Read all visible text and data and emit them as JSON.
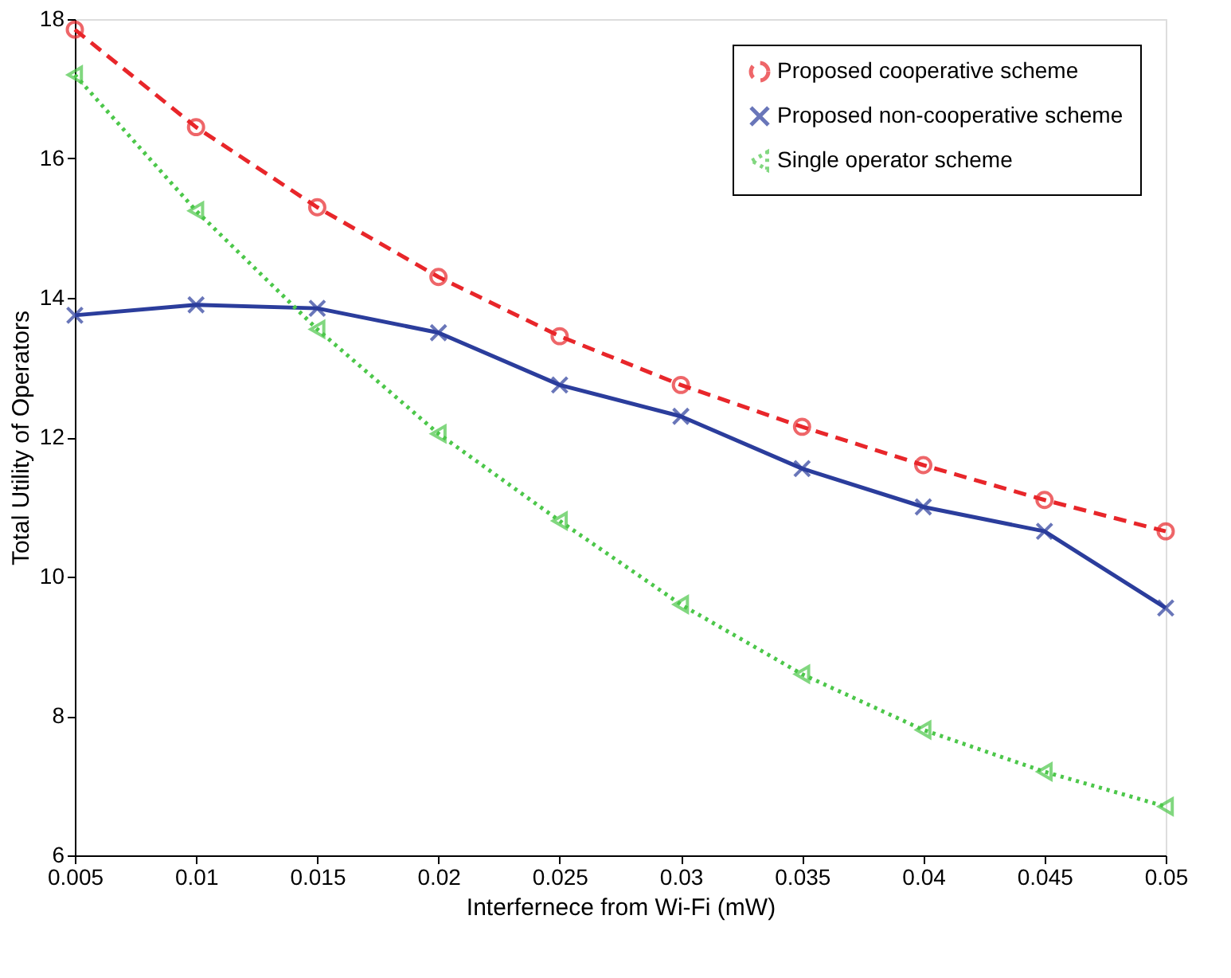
{
  "chart_data": {
    "type": "line",
    "xlabel": "Interfernece from Wi-Fi (mW)",
    "ylabel": "Total Utility of Operators",
    "x": [
      0.005,
      0.01,
      0.015,
      0.02,
      0.025,
      0.03,
      0.035,
      0.04,
      0.045,
      0.05
    ],
    "xlim": [
      0.005,
      0.05
    ],
    "xticks": [
      0.005,
      0.01,
      0.015,
      0.02,
      0.025,
      0.03,
      0.035,
      0.04,
      0.045,
      0.05
    ],
    "ylim": [
      6,
      18
    ],
    "yticks": [
      6,
      8,
      10,
      12,
      14,
      16,
      18
    ],
    "grid": false,
    "legend": "top right",
    "series": [
      {
        "name": "Proposed cooperative scheme",
        "color": "#e8262a",
        "marker": "circle",
        "line_style": "dashed",
        "values": [
          17.85,
          16.45,
          15.3,
          14.3,
          13.45,
          12.75,
          12.15,
          11.6,
          11.1,
          10.65
        ]
      },
      {
        "name": "Proposed non-cooperative scheme",
        "color": "#2b3d9c",
        "marker": "cross",
        "line_style": "solid",
        "values": [
          13.75,
          13.9,
          13.85,
          13.5,
          12.75,
          12.3,
          11.55,
          11.0,
          10.65,
          9.55
        ]
      },
      {
        "name": "Single operator scheme",
        "color": "#4cc74a",
        "marker": "triangle",
        "line_style": "dotted",
        "values": [
          17.2,
          15.25,
          13.55,
          12.05,
          10.8,
          9.6,
          8.6,
          7.8,
          7.2,
          6.7
        ]
      }
    ]
  }
}
